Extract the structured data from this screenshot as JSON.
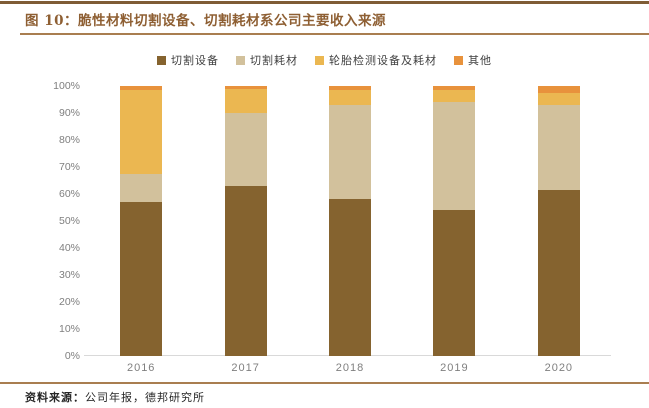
{
  "figure": {
    "title": "图 10：脆性材料切割设备、切割耗材系公司主要收入来源",
    "source_label": "资料来源：",
    "source_text": "公司年报，德邦研究所"
  },
  "colors": {
    "accent_rule": "#7F5C35",
    "thin_rule": "#A97E50",
    "title_text": "#8E5F33",
    "axis_text": "#7F7F7F",
    "baseline": "#D9D9D9"
  },
  "chart_data": {
    "type": "bar",
    "stacked": true,
    "title": "脆性材料切割设备、切割耗材系公司主要收入来源",
    "categories": [
      "2016",
      "2017",
      "2018",
      "2019",
      "2020"
    ],
    "series": [
      {
        "name": "切割设备",
        "color": "#85632F",
        "values": [
          57.0,
          63.0,
          58.0,
          54.0,
          61.5
        ]
      },
      {
        "name": "切割耗材",
        "color": "#D2C19C",
        "values": [
          10.5,
          27.0,
          35.0,
          40.0,
          31.5
        ]
      },
      {
        "name": "轮胎检测设备及耗材",
        "color": "#EBB751",
        "values": [
          31.0,
          9.0,
          5.5,
          4.5,
          4.5
        ]
      },
      {
        "name": "其他",
        "color": "#E8923C",
        "values": [
          1.5,
          1.0,
          1.5,
          1.5,
          2.5
        ]
      }
    ],
    "xlabel": "",
    "ylabel": "",
    "ylim": [
      0,
      100
    ],
    "ytick_step": 10,
    "ytick_suffix": "%",
    "grid": false,
    "legend_position": "top"
  }
}
